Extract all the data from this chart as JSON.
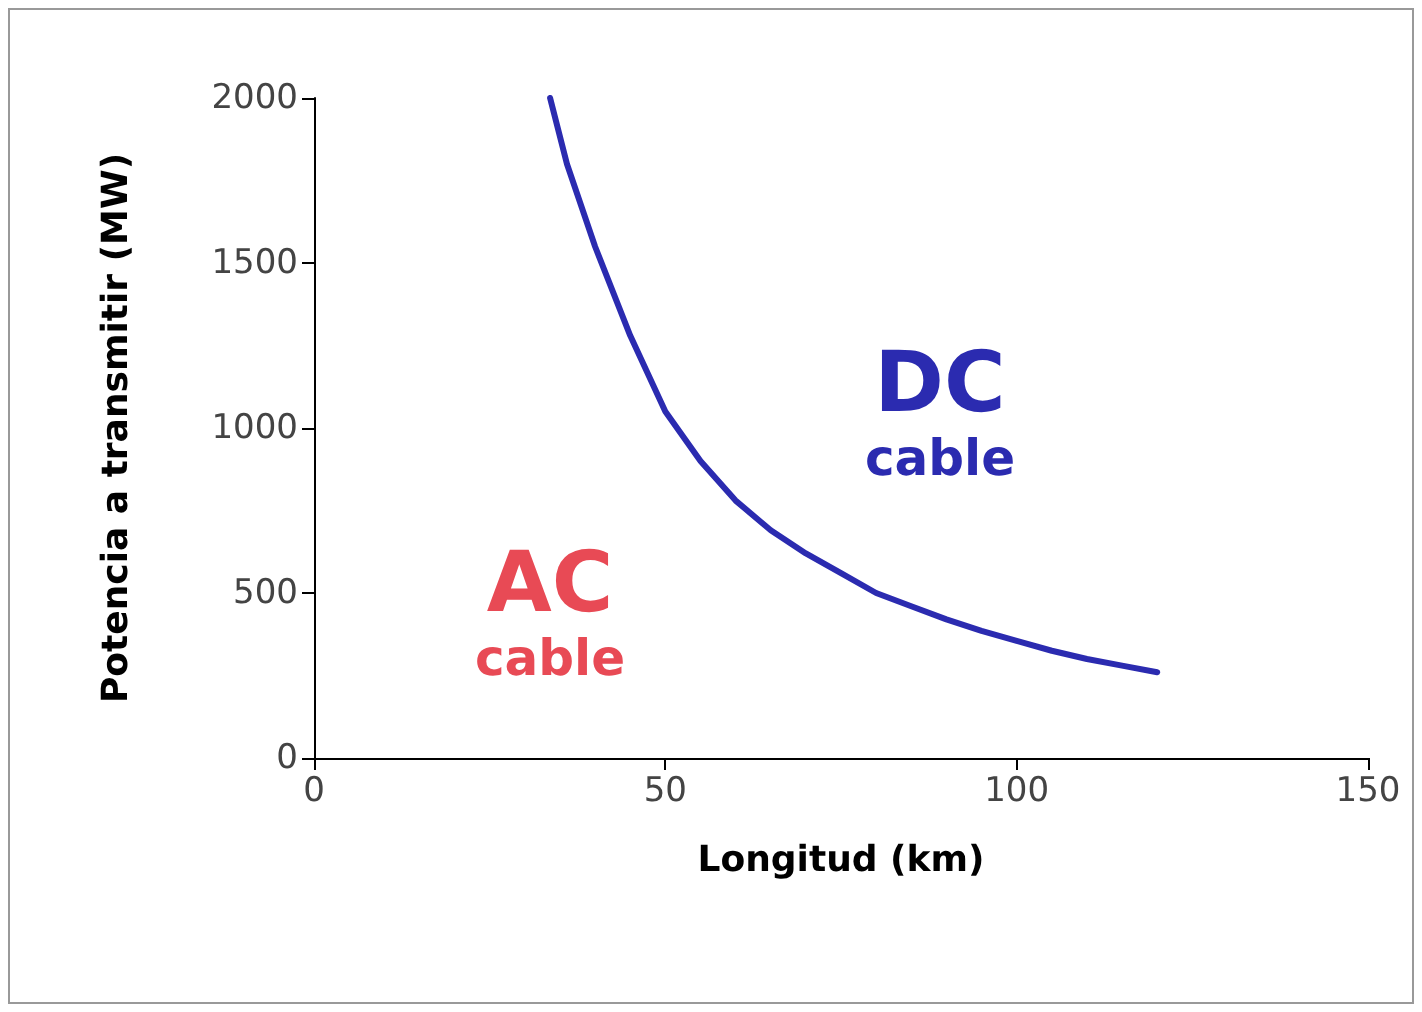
{
  "chart_data": {
    "type": "line",
    "xlabel": "Longitud (km)",
    "ylabel": "Potencia a transmitir (MW)",
    "series": [
      {
        "color": "#2b2bb0",
        "x": [
          33.6,
          36,
          40,
          45,
          50,
          55,
          60,
          65,
          70,
          75,
          80,
          85,
          90,
          95,
          100,
          105,
          110,
          115,
          120
        ],
        "values": [
          2000,
          1800,
          1550,
          1280,
          1050,
          900,
          780,
          690,
          620,
          560,
          500,
          460,
          420,
          385,
          355,
          325,
          300,
          280,
          260
        ]
      }
    ],
    "xlim": [
      0,
      150
    ],
    "xticks": [
      0,
      50,
      100,
      150
    ],
    "ylim": [
      0,
      2000
    ],
    "yticks": [
      0,
      500,
      1000,
      1500,
      2000
    ],
    "annotations": [
      "AC\ncable",
      "DC\ncable"
    ],
    "grid": false,
    "marker": "none",
    "line_style": "solid"
  }
}
